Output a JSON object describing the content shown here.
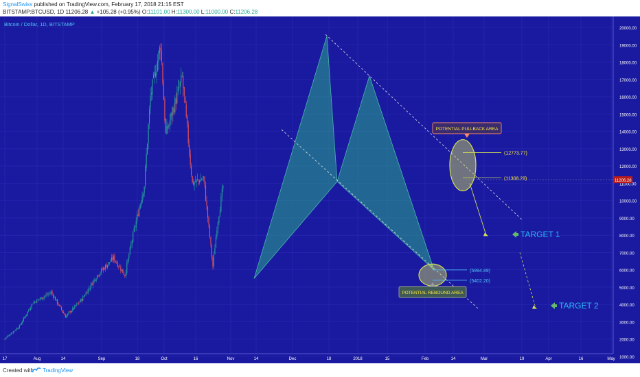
{
  "header": {
    "author": "SignalSwiss",
    "published": "published on TradingView.com, February 17, 2018 21:15 EST",
    "symbol": "BITSTAMP:BTCUSD, 1D",
    "price": "11206.28",
    "change_arrow": "▲",
    "change": "+105.28 (+0.95%)",
    "o_label": "O:",
    "o_value": "11101.00",
    "h_label": "H:",
    "h_value": "11300.00",
    "l_label": "L:",
    "l_value": "11000.00",
    "c_label": "C:",
    "c_value": "11206.28"
  },
  "footer": {
    "created_with": "Created with",
    "brand": "TradingView"
  },
  "colors": {
    "background": "#1a1aa0",
    "up_candle": "#26a69a",
    "down_candle": "#ef5350",
    "pattern_fill": "#2aa88a",
    "highlight": "#d4e157",
    "axis_text": "#ffffff",
    "annotation_text": "#ffeb3b",
    "target_text": "#29b6f6",
    "pullback_box": "#ff8a65",
    "rebound_box": "#9e9e9e"
  },
  "chart_data": {
    "type": "candlestick",
    "title": "Bitcoin / Dollar, 1D, BITSTAMP",
    "x_tick_labels": [
      "17",
      "Aug",
      "14",
      "Sep",
      "18",
      "Oct",
      "16",
      "Nov",
      "14",
      "Dec",
      "18",
      "2018",
      "15",
      "Feb",
      "14",
      "Mar",
      "19",
      "Apr",
      "16",
      "May"
    ],
    "y_tick_labels": [
      "1000.00",
      "2000.00",
      "3000.00",
      "4000.00",
      "5000.00",
      "6000.00",
      "7000.00",
      "8000.00",
      "9000.00",
      "10000.00",
      "11000.00",
      "12000.00",
      "13000.00",
      "14000.00",
      "15000.00",
      "16000.00",
      "17000.00",
      "18000.00",
      "19000.00",
      "20000.00"
    ],
    "ylim": [
      600,
      20400
    ],
    "series": [
      {
        "name": "BTCUSD",
        "approx_close_path": [
          [
            "2017-07-17",
            2000
          ],
          [
            "2017-08-01",
            2750
          ],
          [
            "2017-08-14",
            4100
          ],
          [
            "2017-09-01",
            4700
          ],
          [
            "2017-09-15",
            3300
          ],
          [
            "2017-10-01",
            4300
          ],
          [
            "2017-10-16",
            5700
          ],
          [
            "2017-11-01",
            6700
          ],
          [
            "2017-11-12",
            5700
          ],
          [
            "2017-11-20",
            8000
          ],
          [
            "2017-12-01",
            10900
          ],
          [
            "2017-12-07",
            16000
          ],
          [
            "2017-12-17",
            19000
          ],
          [
            "2017-12-22",
            13800
          ],
          [
            "2018-01-07",
            17100
          ],
          [
            "2018-01-17",
            11000
          ],
          [
            "2018-01-28",
            11300
          ],
          [
            "2018-02-06",
            6200
          ],
          [
            "2018-02-10",
            8500
          ],
          [
            "2018-02-17",
            11206
          ]
        ]
      }
    ],
    "current_price_label": "11206.28",
    "annotations": {
      "pullback_area": "POTENTIAL PULLBACK AREA",
      "rebound_area": "POTENTIAL REBOUND AREA",
      "level_high": "(12773.77)",
      "level_low": "(11308.29)",
      "level_5994": "(5994.89)",
      "level_5402": "(5402.20)",
      "target1": "TARGET 1",
      "target2": "TARGET 2"
    }
  }
}
